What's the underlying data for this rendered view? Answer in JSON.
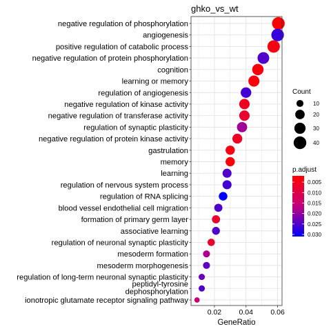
{
  "chart_data": {
    "type": "scatter",
    "title": "ghko_vs_wt",
    "xlabel": "GeneRatio",
    "ylabel": "",
    "xlim": [
      0.0052,
      0.0628
    ],
    "xticks": [
      "0.02",
      "0.04",
      "0.06"
    ],
    "grid": true,
    "categories": [
      "negative regulation of phosphorylation",
      "angiogenesis",
      "positive regulation of catabolic process",
      "negative regulation of protein phosphorylation",
      "cognition",
      "learning or memory",
      "regulation of angiogenesis",
      "negative regulation of kinase activity",
      "negative regulation of transferase activity",
      "regulation of synaptic plasticity",
      "negative regulation of protein kinase activity",
      "gastrulation",
      "memory",
      "learning",
      "regulation of nervous system process",
      "regulation of RNA splicing",
      "blood vessel endothelial cell migration",
      "formation of primary germ layer",
      "associative learning",
      "regulation of neuronal synaptic plasticity",
      "mesoderm formation",
      "mesoderm morphogenesis",
      "regulation of long-term neuronal synaptic plasticity",
      "peptidyl-tyrosine\ndephosphorylation",
      "ionotropic glutamate receptor signaling pathway"
    ],
    "points": [
      {
        "term": "negative regulation of phosphorylation",
        "gene_ratio": 0.0605,
        "count": 40,
        "p_adjust": 0.002
      },
      {
        "term": "angiogenesis",
        "gene_ratio": 0.06,
        "count": 39,
        "p_adjust": 0.027
      },
      {
        "term": "positive regulation of catabolic process",
        "gene_ratio": 0.0575,
        "count": 38,
        "p_adjust": 0.004
      },
      {
        "term": "negative regulation of protein phosphorylation",
        "gene_ratio": 0.051,
        "count": 33,
        "p_adjust": 0.025
      },
      {
        "term": "cognition",
        "gene_ratio": 0.0475,
        "count": 31,
        "p_adjust": 0.003
      },
      {
        "term": "learning or memory",
        "gene_ratio": 0.045,
        "count": 29,
        "p_adjust": 0.003
      },
      {
        "term": "regulation of angiogenesis",
        "gene_ratio": 0.04,
        "count": 26,
        "p_adjust": 0.026
      },
      {
        "term": "negative regulation of kinase activity",
        "gene_ratio": 0.039,
        "count": 25,
        "p_adjust": 0.006
      },
      {
        "term": "negative regulation of transferase activity",
        "gene_ratio": 0.039,
        "count": 25,
        "p_adjust": 0.007
      },
      {
        "term": "regulation of synaptic plasticity",
        "gene_ratio": 0.0375,
        "count": 24,
        "p_adjust": 0.019
      },
      {
        "term": "negative regulation of protein kinase activity",
        "gene_ratio": 0.0345,
        "count": 22,
        "p_adjust": 0.006
      },
      {
        "term": "gastrulation",
        "gene_ratio": 0.03,
        "count": 19,
        "p_adjust": 0.004
      },
      {
        "term": "memory",
        "gene_ratio": 0.03,
        "count": 19,
        "p_adjust": 0.003
      },
      {
        "term": "learning",
        "gene_ratio": 0.028,
        "count": 18,
        "p_adjust": 0.025
      },
      {
        "term": "regulation of nervous system process",
        "gene_ratio": 0.028,
        "count": 18,
        "p_adjust": 0.026
      },
      {
        "term": "regulation of RNA splicing",
        "gene_ratio": 0.0255,
        "count": 16,
        "p_adjust": 0.031
      },
      {
        "term": "blood vessel endothelial cell migration",
        "gene_ratio": 0.0225,
        "count": 14,
        "p_adjust": 0.025
      },
      {
        "term": "formation of primary germ layer",
        "gene_ratio": 0.021,
        "count": 14,
        "p_adjust": 0.007
      },
      {
        "term": "associative learning",
        "gene_ratio": 0.021,
        "count": 13,
        "p_adjust": 0.025
      },
      {
        "term": "regulation of neuronal synaptic plasticity",
        "gene_ratio": 0.018,
        "count": 11,
        "p_adjust": 0.007
      },
      {
        "term": "mesoderm formation",
        "gene_ratio": 0.015,
        "count": 10,
        "p_adjust": 0.018
      },
      {
        "term": "mesoderm morphogenesis",
        "gene_ratio": 0.015,
        "count": 10,
        "p_adjust": 0.024
      },
      {
        "term": "regulation of long-term neuronal synaptic plasticity",
        "gene_ratio": 0.012,
        "count": 8,
        "p_adjust": 0.023
      },
      {
        "term": "peptidyl-tyrosine\ndephosphorylation",
        "gene_ratio": 0.012,
        "count": 8,
        "p_adjust": 0.025
      },
      {
        "term": "ionotropic glutamate receptor signaling pathway",
        "gene_ratio": 0.009,
        "count": 6,
        "p_adjust": 0.015
      }
    ],
    "size_legend": {
      "title": "Count",
      "values": [
        10,
        20,
        30,
        40
      ],
      "labels": [
        "10",
        "20",
        "30",
        "40"
      ]
    },
    "color_legend": {
      "title": "p.adjust",
      "range": [
        0.002,
        0.031
      ],
      "ticks": [
        0.005,
        0.01,
        0.015,
        0.02,
        0.025,
        0.03
      ],
      "labels": [
        "0.005",
        "0.010",
        "0.015",
        "0.020",
        "0.025",
        "0.030"
      ],
      "low_color": "#ff0000",
      "high_color": "#0000ff"
    },
    "legend_position": "right"
  }
}
